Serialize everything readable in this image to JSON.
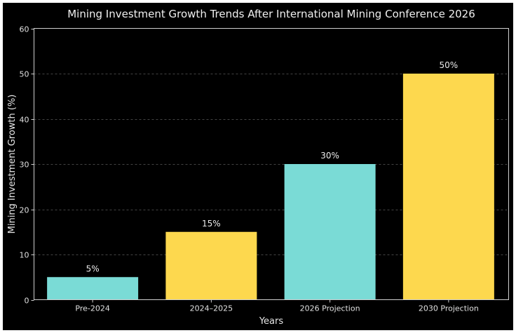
{
  "chart_data": {
    "type": "bar",
    "title": "Mining Investment Growth Trends After International Mining Conference 2026",
    "xlabel": "Years",
    "ylabel": "Mining Investment Growth (%)",
    "categories": [
      "Pre-2024",
      "2024–2025",
      "2026 Projection",
      "2030 Projection"
    ],
    "values": [
      5,
      15,
      30,
      50
    ],
    "data_labels": [
      "5%",
      "15%",
      "30%",
      "50%"
    ],
    "bar_colors": [
      "#7ADBD6",
      "#FDD84E",
      "#7ADBD6",
      "#FDD84E"
    ],
    "ylim": [
      0,
      60
    ],
    "yticks": [
      0,
      10,
      20,
      30,
      40,
      50,
      60
    ],
    "ytick_labels": [
      "0",
      "10",
      "20",
      "30",
      "40",
      "50",
      "60"
    ],
    "grid": "y-dashed",
    "legend": "none",
    "background": "#000000"
  }
}
